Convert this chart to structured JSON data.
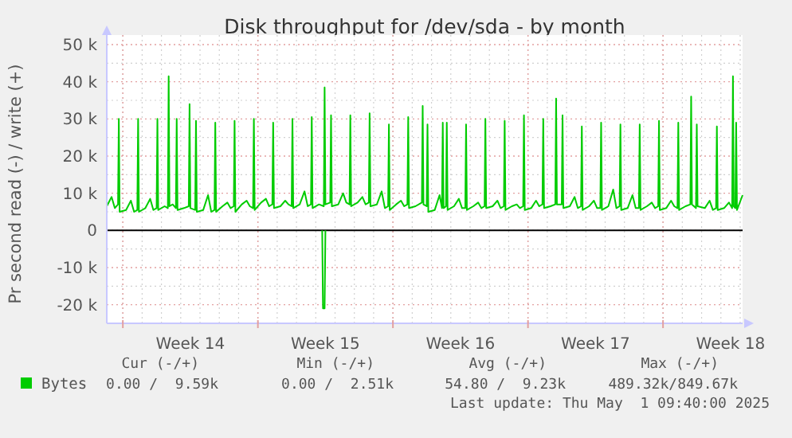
{
  "chart_data": {
    "type": "line",
    "title": "Disk throughput for /dev/sda - by month",
    "ylabel": "Pr second read (-) / write (+)",
    "xlim": [
      "2025-03-30T04:00",
      "2025-05-02T03:00"
    ],
    "xticks": [
      {
        "value": "2025-03-31T00:00",
        "label": null
      },
      {
        "value": "2025-04-03T12:00",
        "label": "Week 14"
      },
      {
        "value": "2025-04-07T00:00",
        "label": null
      },
      {
        "value": "2025-04-10T12:00",
        "label": "Week 15"
      },
      {
        "value": "2025-04-14T00:00",
        "label": null
      },
      {
        "value": "2025-04-17T12:00",
        "label": "Week 16"
      },
      {
        "value": "2025-04-21T00:00",
        "label": null
      },
      {
        "value": "2025-04-24T12:00",
        "label": "Week 17"
      },
      {
        "value": "2025-04-28T00:00",
        "label": null
      },
      {
        "value": "2025-05-01T12:00",
        "label": "Week 18"
      }
    ],
    "ylim": [
      -25000,
      50000
    ],
    "yticks": [
      {
        "value": -20000,
        "label": "-20 k"
      },
      {
        "value": -10000,
        "label": "-10 k"
      },
      0,
      {
        "value": 10000,
        "label": "10 k"
      },
      {
        "value": 20000,
        "label": "20 k"
      },
      {
        "value": 30000,
        "label": "30 k"
      },
      {
        "value": 40000,
        "label": "40 k"
      },
      {
        "value": 50000,
        "label": "50 k"
      }
    ],
    "grid": true,
    "legend": "bottom left",
    "marker": "none",
    "line_style": "solid",
    "ref_lines": [
      {
        "axis": "y",
        "value": 0,
        "color": "#000000"
      }
    ],
    "annotations": [
      "Cur (-/+)",
      "Min (-/+)",
      "Avg (-/+)",
      "Max (-/+)",
      "0.00 /  9.59k",
      "0.00 /  2.51k",
      "54.80 /  9.23k",
      "489.32k/849.67k",
      "Last update: Thu May  1 09:40:00 2025"
    ],
    "series": [
      {
        "name": "Bytes",
        "color": "#00cc00",
        "x": [
          "2025-03-30T04:00",
          "2025-03-30T10:00",
          "2025-03-30T14:00",
          "2025-03-30T18:00",
          "2025-03-30T19:00",
          "2025-03-30T20:00",
          "2025-03-31T04:00",
          "2025-03-31T10:00",
          "2025-03-31T14:00",
          "2025-03-31T18:00",
          "2025-03-31T19:00",
          "2025-03-31T20:00",
          "2025-04-01T04:00",
          "2025-04-01T10:00",
          "2025-04-01T14:00",
          "2025-04-01T18:00",
          "2025-04-01T19:00",
          "2025-04-01T20:00",
          "2025-04-02T04:00",
          "2025-04-02T08:00",
          "2025-04-02T09:00",
          "2025-04-02T10:00",
          "2025-04-02T14:00",
          "2025-04-02T18:00",
          "2025-04-02T19:00",
          "2025-04-02T20:00",
          "2025-04-03T04:00",
          "2025-04-03T10:00",
          "2025-04-03T11:00",
          "2025-04-03T12:00",
          "2025-04-03T18:00",
          "2025-04-03T19:00",
          "2025-04-03T20:00",
          "2025-04-04T04:00",
          "2025-04-04T10:00",
          "2025-04-04T14:00",
          "2025-04-04T18:00",
          "2025-04-04T19:00",
          "2025-04-04T20:00",
          "2025-04-05T04:00",
          "2025-04-05T10:00",
          "2025-04-05T14:00",
          "2025-04-05T18:00",
          "2025-04-05T19:00",
          "2025-04-05T20:00",
          "2025-04-06T04:00",
          "2025-04-06T10:00",
          "2025-04-06T14:00",
          "2025-04-06T18:00",
          "2025-04-06T19:00",
          "2025-04-06T20:00",
          "2025-04-07T04:00",
          "2025-04-07T10:00",
          "2025-04-07T14:00",
          "2025-04-07T18:00",
          "2025-04-07T19:00",
          "2025-04-07T20:00",
          "2025-04-08T04:00",
          "2025-04-08T10:00",
          "2025-04-08T14:00",
          "2025-04-08T18:00",
          "2025-04-08T19:00",
          "2025-04-08T20:00",
          "2025-04-09T04:00",
          "2025-04-09T10:00",
          "2025-04-09T14:00",
          "2025-04-09T18:00",
          "2025-04-09T19:00",
          "2025-04-09T20:00",
          "2025-04-10T04:00",
          "2025-04-10T10:00",
          "2025-04-10T11:00",
          "2025-04-10T12:00",
          "2025-04-10T18:00",
          "2025-04-10T19:00",
          "2025-04-10T20:00",
          "2025-04-11T04:00",
          "2025-04-11T10:00",
          "2025-04-11T14:00",
          "2025-04-11T18:00",
          "2025-04-11T19:00",
          "2025-04-11T20:00",
          "2025-04-12T04:00",
          "2025-04-12T10:00",
          "2025-04-12T14:00",
          "2025-04-12T18:00",
          "2025-04-12T19:00",
          "2025-04-12T20:00",
          "2025-04-13T04:00",
          "2025-04-13T10:00",
          "2025-04-13T14:00",
          "2025-04-13T18:00",
          "2025-04-13T19:00",
          "2025-04-13T20:00",
          "2025-04-14T04:00",
          "2025-04-14T10:00",
          "2025-04-14T14:00",
          "2025-04-14T18:00",
          "2025-04-14T19:00",
          "2025-04-14T20:00",
          "2025-04-15T04:00",
          "2025-04-15T12:00",
          "2025-04-15T13:00",
          "2025-04-15T14:00",
          "2025-04-15T18:00",
          "2025-04-15T19:00",
          "2025-04-15T20:00",
          "2025-04-16T04:00",
          "2025-04-16T10:00",
          "2025-04-16T13:00",
          "2025-04-16T14:00",
          "2025-04-16T15:00",
          "2025-04-16T18:00",
          "2025-04-16T19:00",
          "2025-04-16T20:00",
          "2025-04-17T04:00",
          "2025-04-17T10:00",
          "2025-04-17T14:00",
          "2025-04-17T18:00",
          "2025-04-17T19:00",
          "2025-04-17T20:00",
          "2025-04-18T04:00",
          "2025-04-18T10:00",
          "2025-04-18T14:00",
          "2025-04-18T18:00",
          "2025-04-18T19:00",
          "2025-04-18T20:00",
          "2025-04-19T04:00",
          "2025-04-19T10:00",
          "2025-04-19T14:00",
          "2025-04-19T18:00",
          "2025-04-19T19:00",
          "2025-04-19T20:00",
          "2025-04-20T04:00",
          "2025-04-20T10:00",
          "2025-04-20T14:00",
          "2025-04-20T18:00",
          "2025-04-20T19:00",
          "2025-04-20T20:00",
          "2025-04-21T04:00",
          "2025-04-21T10:00",
          "2025-04-21T14:00",
          "2025-04-21T18:00",
          "2025-04-21T19:00",
          "2025-04-21T20:00",
          "2025-04-22T04:00",
          "2025-04-22T10:00",
          "2025-04-22T11:00",
          "2025-04-22T12:00",
          "2025-04-22T18:00",
          "2025-04-22T19:00",
          "2025-04-22T20:00",
          "2025-04-23T04:00",
          "2025-04-23T10:00",
          "2025-04-23T14:00",
          "2025-04-23T18:00",
          "2025-04-23T19:00",
          "2025-04-23T20:00",
          "2025-04-24T04:00",
          "2025-04-24T10:00",
          "2025-04-24T14:00",
          "2025-04-24T18:00",
          "2025-04-24T19:00",
          "2025-04-24T20:00",
          "2025-04-25T04:00",
          "2025-04-25T10:00",
          "2025-04-25T14:00",
          "2025-04-25T18:00",
          "2025-04-25T19:00",
          "2025-04-25T20:00",
          "2025-04-26T04:00",
          "2025-04-26T10:00",
          "2025-04-26T14:00",
          "2025-04-26T18:00",
          "2025-04-26T19:00",
          "2025-04-26T20:00",
          "2025-04-27T04:00",
          "2025-04-27T10:00",
          "2025-04-27T14:00",
          "2025-04-27T18:00",
          "2025-04-27T19:00",
          "2025-04-27T20:00",
          "2025-04-28T04:00",
          "2025-04-28T10:00",
          "2025-04-28T14:00",
          "2025-04-28T18:00",
          "2025-04-28T19:00",
          "2025-04-28T20:00",
          "2025-04-29T04:00",
          "2025-04-29T10:00",
          "2025-04-29T11:00",
          "2025-04-29T12:00",
          "2025-04-29T17:00",
          "2025-04-29T18:00",
          "2025-04-29T19:00",
          "2025-04-30T04:00",
          "2025-04-30T10:00",
          "2025-04-30T14:00",
          "2025-04-30T18:00",
          "2025-04-30T19:00",
          "2025-04-30T20:00",
          "2025-05-01T04:00",
          "2025-05-01T10:00",
          "2025-05-01T14:00",
          "2025-05-01T15:00",
          "2025-05-01T16:00",
          "2025-05-01T18:00",
          "2025-05-01T19:00",
          "2025-05-01T20:00",
          "2025-05-02T03:00"
        ],
        "values": [
          6500,
          9000,
          6000,
          7000,
          30000,
          5000,
          5500,
          8000,
          5000,
          5500,
          30000,
          5000,
          6000,
          8500,
          5500,
          6000,
          30000,
          5500,
          6500,
          6000,
          41500,
          6500,
          7000,
          6000,
          30000,
          5500,
          6000,
          6500,
          34000,
          6000,
          5500,
          29500,
          5000,
          5500,
          9500,
          5000,
          5500,
          29000,
          5000,
          6500,
          7500,
          6000,
          6500,
          29500,
          5000,
          7000,
          8000,
          6500,
          6000,
          30000,
          5500,
          7500,
          8500,
          6500,
          7000,
          29000,
          6000,
          6500,
          8000,
          7000,
          6500,
          30000,
          6000,
          7000,
          10500,
          6500,
          7000,
          30500,
          6000,
          7000,
          6500,
          38500,
          7000,
          7500,
          31000,
          6500,
          7000,
          10000,
          7500,
          7000,
          31000,
          6500,
          7500,
          9000,
          7000,
          7500,
          31500,
          6500,
          7000,
          10500,
          6000,
          6500,
          28500,
          5500,
          7000,
          8000,
          6500,
          7000,
          30500,
          6000,
          6500,
          7500,
          33500,
          7000,
          6500,
          28500,
          5000,
          5500,
          9500,
          6000,
          29000,
          6000,
          6500,
          29000,
          5500,
          6500,
          8500,
          6000,
          6000,
          28500,
          5500,
          6500,
          7500,
          6000,
          6500,
          30000,
          6000,
          6500,
          8000,
          6000,
          6500,
          29500,
          5500,
          6500,
          7000,
          6000,
          6500,
          31000,
          5500,
          6000,
          8000,
          6500,
          7000,
          30000,
          6000,
          6500,
          7000,
          35500,
          7000,
          7000,
          31000,
          6000,
          6500,
          9000,
          6000,
          6500,
          28000,
          5500,
          6500,
          8000,
          6000,
          6000,
          29000,
          5500,
          6500,
          11000,
          6000,
          6500,
          28500,
          5500,
          6000,
          9500,
          6000,
          6000,
          28500,
          5500,
          6500,
          7500,
          6000,
          6500,
          29500,
          5500,
          6000,
          8000,
          6500,
          6000,
          29000,
          5500,
          6500,
          7000,
          36000,
          7000,
          6000,
          28500,
          6500,
          6000,
          8000,
          5500,
          6000,
          28000,
          5500,
          6000,
          7500,
          6000,
          41500,
          6500,
          6000,
          29000,
          5500,
          9500
        ]
      },
      {
        "color": "#00cc00",
        "x": [
          "2025-04-10T08:00",
          "2025-04-10T09:00",
          "2025-04-10T11:00",
          "2025-04-10T12:00"
        ],
        "values": [
          0,
          -21000,
          -21000,
          0
        ]
      }
    ]
  }
}
